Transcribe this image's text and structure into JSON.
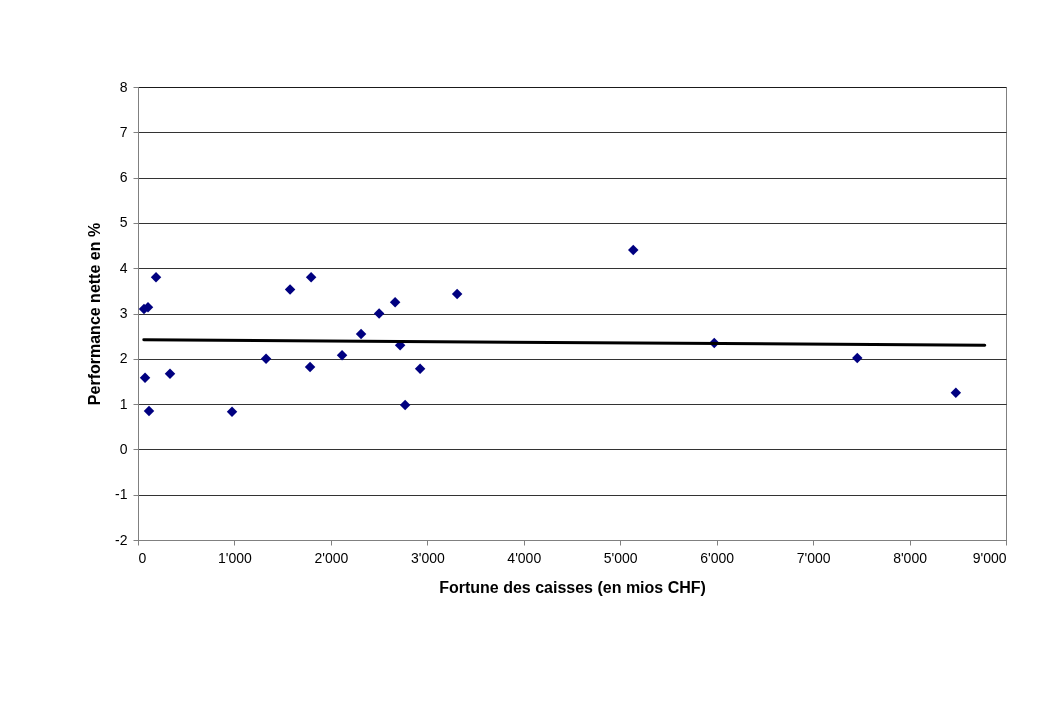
{
  "chart_data": {
    "type": "scatter",
    "xlabel": "Fortune des caisses (en mios CHF)",
    "ylabel": "Performance nette en %",
    "xlim": [
      0,
      9000
    ],
    "ylim": [
      -2,
      8
    ],
    "xticks": [
      0,
      {
        "value": 1000,
        "label": "1'000"
      },
      {
        "value": 2000,
        "label": "2'000"
      },
      {
        "value": 3000,
        "label": "3'000"
      },
      {
        "value": 4000,
        "label": "4'000"
      },
      {
        "value": 5000,
        "label": "5'000"
      },
      {
        "value": 6000,
        "label": "6'000"
      },
      {
        "value": 7000,
        "label": "7'000"
      },
      {
        "value": 8000,
        "label": "8'000"
      },
      {
        "value": 9000,
        "label": "9'000"
      }
    ],
    "yticks": [
      -2,
      -1,
      0,
      1,
      2,
      3,
      4,
      5,
      6,
      7,
      8
    ],
    "grid": "y",
    "marker": "diamond",
    "series": [
      {
        "color": "#000080",
        "x": [
          62,
          104,
          187,
          73,
          114,
          332,
          975,
          1328,
          1577,
          1795,
          1784,
          2116,
          2313,
          2500,
          2666,
          2718,
          2770,
          2925,
          3309,
          5135,
          5975,
          7458,
          8480
        ],
        "values": [
          3.1,
          3.14,
          3.8,
          1.58,
          0.85,
          1.67,
          0.83,
          2.0,
          3.53,
          3.8,
          1.82,
          2.08,
          2.55,
          3.0,
          3.25,
          2.3,
          0.98,
          1.78,
          3.43,
          4.4,
          2.35,
          2.02,
          1.25
        ]
      },
      {
        "type": "line",
        "marker": "none",
        "line_style": "solid",
        "color": "#000000",
        "x": [
          60,
          8780
        ],
        "values": [
          2.42,
          2.3
        ]
      }
    ]
  }
}
